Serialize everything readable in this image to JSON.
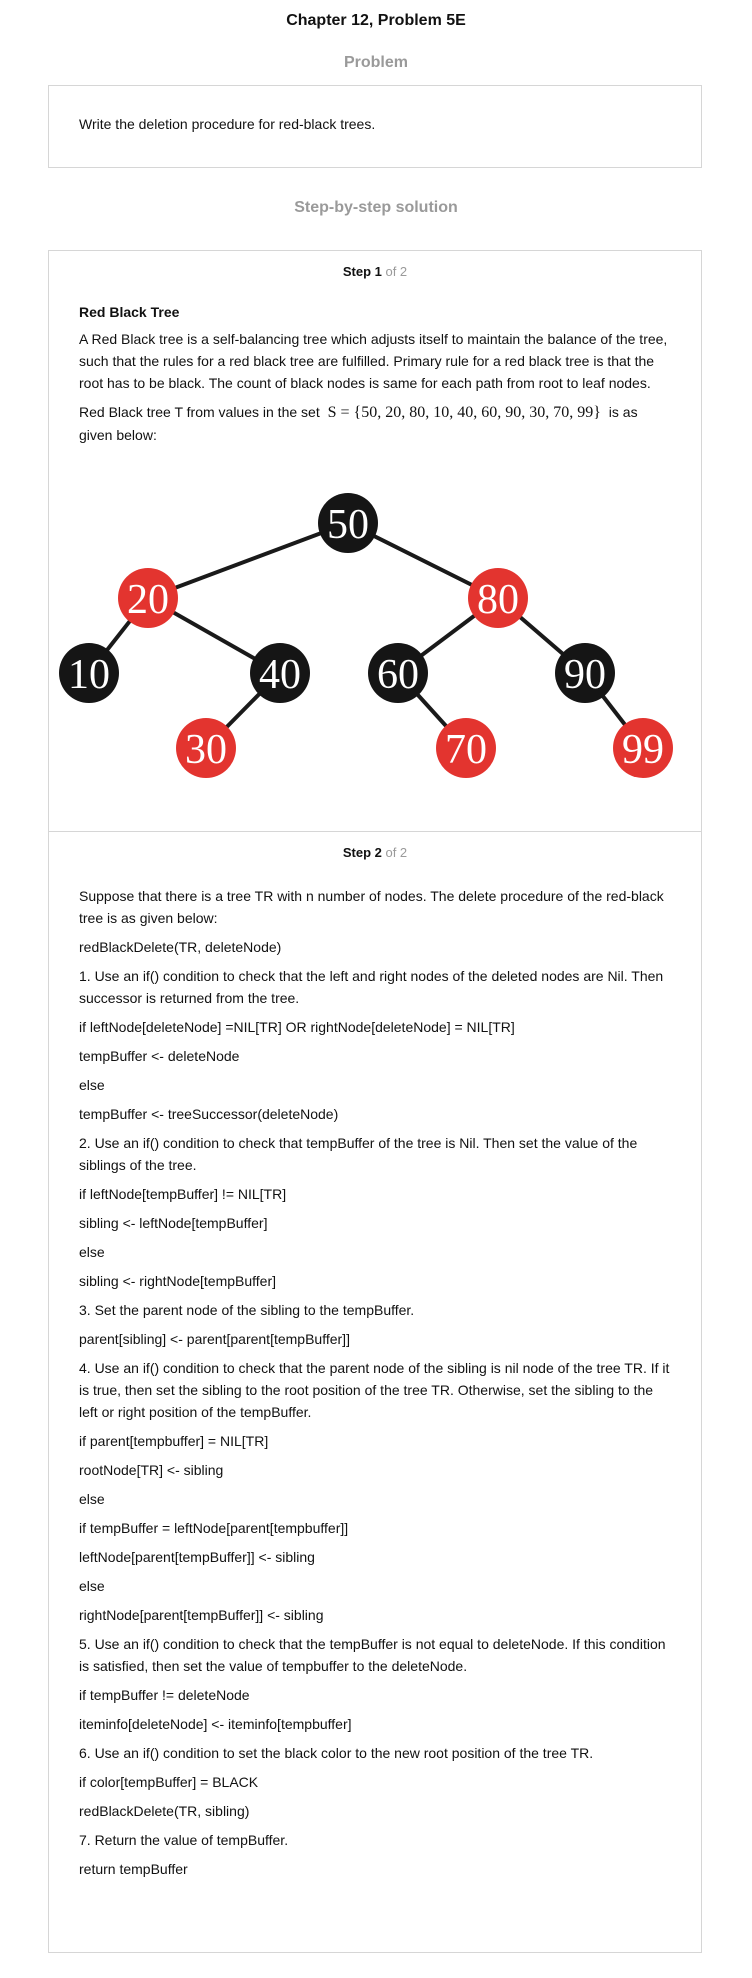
{
  "chapter_title": "Chapter 12, Problem 5E",
  "problem": {
    "heading": "Problem",
    "text": "Write the deletion procedure for red-black trees."
  },
  "solution_heading": "Step-by-step solution",
  "step1": {
    "label_bold": "Step 1",
    "label_of": " of 2",
    "subheading": "Red Black Tree",
    "paragraph1": "A Red Black tree is a self-balancing tree which adjusts itself to maintain the balance of the tree, such that the rules for a red black tree are fulfilled. Primary rule for a red black tree is that the root has to be black. The count of black nodes is same for each path from root to leaf nodes.",
    "paragraph2_before": "Red Black tree T from values in the set",
    "set_math": "S = {50, 20, 80, 10, 40, 60, 90, 30, 70, 99}",
    "paragraph2_after": "is as given below:",
    "tree": {
      "colors": {
        "black": "#151515",
        "red": "#e3342f",
        "edge": "#1a1a1a",
        "text": "#ffffff"
      },
      "nodes": [
        {
          "id": "n50",
          "value": "50",
          "color": "black"
        },
        {
          "id": "n20",
          "value": "20",
          "color": "red"
        },
        {
          "id": "n80",
          "value": "80",
          "color": "red"
        },
        {
          "id": "n10",
          "value": "10",
          "color": "black"
        },
        {
          "id": "n40",
          "value": "40",
          "color": "black"
        },
        {
          "id": "n60",
          "value": "60",
          "color": "black"
        },
        {
          "id": "n90",
          "value": "90",
          "color": "black"
        },
        {
          "id": "n30",
          "value": "30",
          "color": "red"
        },
        {
          "id": "n70",
          "value": "70",
          "color": "red"
        },
        {
          "id": "n99",
          "value": "99",
          "color": "red"
        }
      ],
      "edges": [
        [
          "n50",
          "n20"
        ],
        [
          "n50",
          "n80"
        ],
        [
          "n20",
          "n10"
        ],
        [
          "n20",
          "n40"
        ],
        [
          "n40",
          "n30"
        ],
        [
          "n80",
          "n60"
        ],
        [
          "n80",
          "n90"
        ],
        [
          "n60",
          "n70"
        ],
        [
          "n90",
          "n99"
        ]
      ]
    }
  },
  "step2": {
    "label_bold": "Step 2",
    "label_of": " of 2",
    "lines": [
      "Suppose that there is a tree TR with n number of nodes. The delete procedure of the red-black tree is as given below:",
      "redBlackDelete(TR, deleteNode)",
      "1. Use an if() condition to check that the left and right nodes of the deleted nodes are Nil. Then successor is returned from the tree.",
      "if leftNode[deleteNode] =NIL[TR] OR rightNode[deleteNode] = NIL[TR]",
      "tempBuffer <- deleteNode",
      "else",
      "tempBuffer <- treeSuccessor(deleteNode)",
      "2. Use an if() condition to check that tempBuffer of the tree is Nil. Then set the value of the siblings of the tree.",
      "if leftNode[tempBuffer] != NIL[TR]",
      "sibling <- leftNode[tempBuffer]",
      "else",
      "sibling <- rightNode[tempBuffer]",
      "3. Set the parent node of the sibling to the tempBuffer.",
      "parent[sibling] <- parent[parent[tempBuffer]]",
      "4. Use an if() condition to check that the parent node of the sibling is nil node of the tree TR. If it is true, then set the sibling to the root position of the tree TR. Otherwise, set the sibling to the left or right position of the tempBuffer.",
      "if parent[tempbuffer] = NIL[TR]",
      "rootNode[TR] <- sibling",
      "else",
      "if tempBuffer = leftNode[parent[tempbuffer]]",
      "leftNode[parent[tempBuffer]] <- sibling",
      "else",
      "rightNode[parent[tempBuffer]] <- sibling",
      "5. Use an if() condition to check that the tempBuffer is not equal to deleteNode. If this condition is satisfied, then set the value of tempbuffer to the deleteNode.",
      "if tempBuffer != deleteNode",
      "iteminfo[deleteNode] <- iteminfo[tempbuffer]",
      "6. Use an if() condition to set the black color to the new root position of the tree TR.",
      "if color[tempBuffer] = BLACK",
      "redBlackDelete(TR, sibling)",
      "7. Return the value of tempBuffer.",
      "return tempBuffer"
    ]
  }
}
